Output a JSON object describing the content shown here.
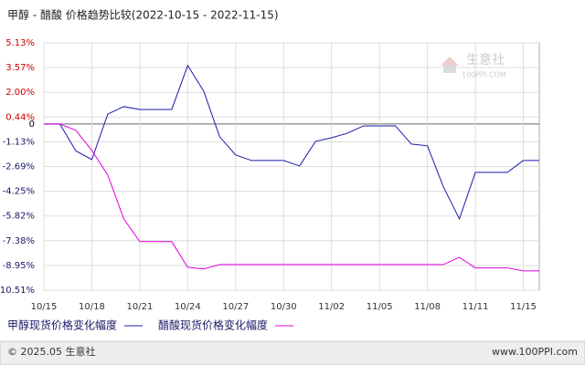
{
  "chart_data": {
    "type": "line",
    "title": "甲醇 - 醋酸 价格趋势比较(2022-10-15 - 2022-11-15)",
    "categories": [
      "10/15",
      null,
      null,
      "10/18",
      null,
      null,
      "10/21",
      null,
      null,
      "10/24",
      null,
      null,
      "10/27",
      null,
      null,
      "10/30",
      null,
      null,
      "11/02",
      null,
      null,
      "11/05",
      null,
      null,
      "11/08",
      null,
      null,
      "11/11",
      null,
      null,
      "11/15",
      null
    ],
    "series": [
      {
        "name": "甲醇现货价格变化幅度",
        "color": "#1a1aa8",
        "values": [
          0,
          0,
          -1.7,
          -2.25,
          0.63,
          1.1,
          0.92,
          0.92,
          0.92,
          3.7,
          2.08,
          -0.81,
          -1.96,
          -2.31,
          -2.31,
          -2.31,
          -2.65,
          -1.1,
          -0.87,
          -0.58,
          -0.12,
          -0.12,
          -0.12,
          -1.27,
          -1.38,
          -3.98,
          -6.0,
          -3.06,
          -3.06,
          -3.06,
          -2.31,
          -2.31
        ]
      },
      {
        "name": "醋酸现货价格变化幅度",
        "color": "#e000e0",
        "values": [
          0,
          0,
          -0.4,
          -1.67,
          -3.23,
          -6.0,
          -7.44,
          -7.44,
          -7.44,
          -9.06,
          -9.17,
          -8.89,
          -8.89,
          -8.89,
          -8.89,
          -8.89,
          -8.89,
          -8.89,
          -8.89,
          -8.89,
          -8.89,
          -8.89,
          -8.89,
          -8.89,
          -8.89,
          -8.89,
          -8.43,
          -9.1,
          -9.1,
          -9.1,
          -9.29,
          -9.29
        ]
      }
    ],
    "ylim": [
      -10.51,
      5.13
    ],
    "yticks": [
      {
        "value": 5.13,
        "label": "5.13%"
      },
      {
        "value": 3.57,
        "label": "3.57%"
      },
      {
        "value": 2.0,
        "label": "2.00%"
      },
      {
        "value": 0.44,
        "label": "0.44%"
      },
      0,
      {
        "value": -1.13,
        "label": "-1.13%"
      },
      {
        "value": -2.69,
        "label": "-2.69%"
      },
      {
        "value": -4.25,
        "label": "-4.25%"
      },
      {
        "value": -5.82,
        "label": "-5.82%"
      },
      {
        "value": -7.38,
        "label": "-7.38%"
      },
      {
        "value": -8.95,
        "label": "-8.95%"
      },
      {
        "value": -10.51,
        "label": "-10.51%"
      }
    ],
    "ytick_colors": {
      "positive": "#cc0000",
      "zero": "#000000",
      "negative": "#1a1a66"
    },
    "grid": true,
    "watermark": [
      "生意社",
      "100PPI.COM"
    ]
  },
  "footer": {
    "left": "© 2025.05 生意社",
    "right": "www.100PPI.com"
  }
}
